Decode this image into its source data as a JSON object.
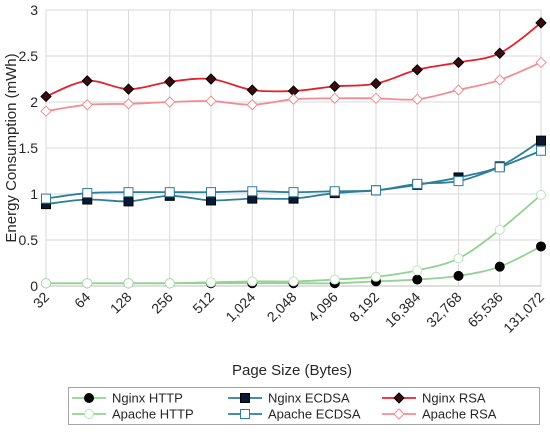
{
  "chart_data": {
    "type": "line",
    "xlabel": "Page Size (Bytes)",
    "ylabel": "Energy Consumption (mWh)",
    "ylim": [
      0,
      3
    ],
    "yticks": [
      "0",
      "0.5",
      "1",
      "1.5",
      "2",
      "2.5",
      "3"
    ],
    "categories": [
      "32",
      "64",
      "128",
      "256",
      "512",
      "1,024",
      "2,048",
      "4,096",
      "8,192",
      "16,384",
      "32,768",
      "65,536",
      "131,072"
    ],
    "grid": true,
    "legend_position": "bottom",
    "series": [
      {
        "name": "Nginx HTTP",
        "color": "#000000",
        "line_color": "#93d293",
        "marker": "circle-filled",
        "values": [
          0.03,
          0.03,
          0.03,
          0.03,
          0.03,
          0.03,
          0.03,
          0.03,
          0.05,
          0.07,
          0.11,
          0.21,
          0.43
        ]
      },
      {
        "name": "Apache HTTP",
        "color": "#b8e6b8",
        "line_color": "#93d293",
        "marker": "circle-open",
        "values": [
          0.03,
          0.03,
          0.03,
          0.03,
          0.04,
          0.05,
          0.05,
          0.07,
          0.1,
          0.17,
          0.3,
          0.61,
          0.99
        ]
      },
      {
        "name": "Nginx ECDSA",
        "color": "#0a1a33",
        "line_color": "#2e7d99",
        "marker": "square-filled",
        "values": [
          0.89,
          0.94,
          0.92,
          0.98,
          0.93,
          0.95,
          0.95,
          1.01,
          1.04,
          1.1,
          1.18,
          1.3,
          1.58
        ]
      },
      {
        "name": "Apache ECDSA",
        "color": "#2e7d99",
        "line_color": "#2e7d99",
        "marker": "square-open",
        "values": [
          0.95,
          1.01,
          1.02,
          1.02,
          1.02,
          1.03,
          1.02,
          1.03,
          1.04,
          1.11,
          1.14,
          1.29,
          1.47
        ]
      },
      {
        "name": "Nginx RSA",
        "color": "#3a0b10",
        "line_color": "#e4222f",
        "marker": "diamond-filled",
        "values": [
          2.06,
          2.23,
          2.14,
          2.22,
          2.25,
          2.13,
          2.12,
          2.17,
          2.2,
          2.35,
          2.43,
          2.53,
          2.86
        ]
      },
      {
        "name": "Apache RSA",
        "color": "#f28c92",
        "line_color": "#f28c92",
        "marker": "diamond-open",
        "values": [
          1.9,
          1.97,
          1.98,
          2.0,
          2.01,
          1.97,
          2.03,
          2.04,
          2.04,
          2.03,
          2.13,
          2.24,
          2.43
        ]
      }
    ],
    "legend": {
      "rows": [
        [
          "Nginx HTTP",
          "Nginx ECDSA",
          "Nginx RSA"
        ],
        [
          "Apache HTTP",
          "Apache ECDSA",
          "Apache RSA"
        ]
      ]
    }
  }
}
